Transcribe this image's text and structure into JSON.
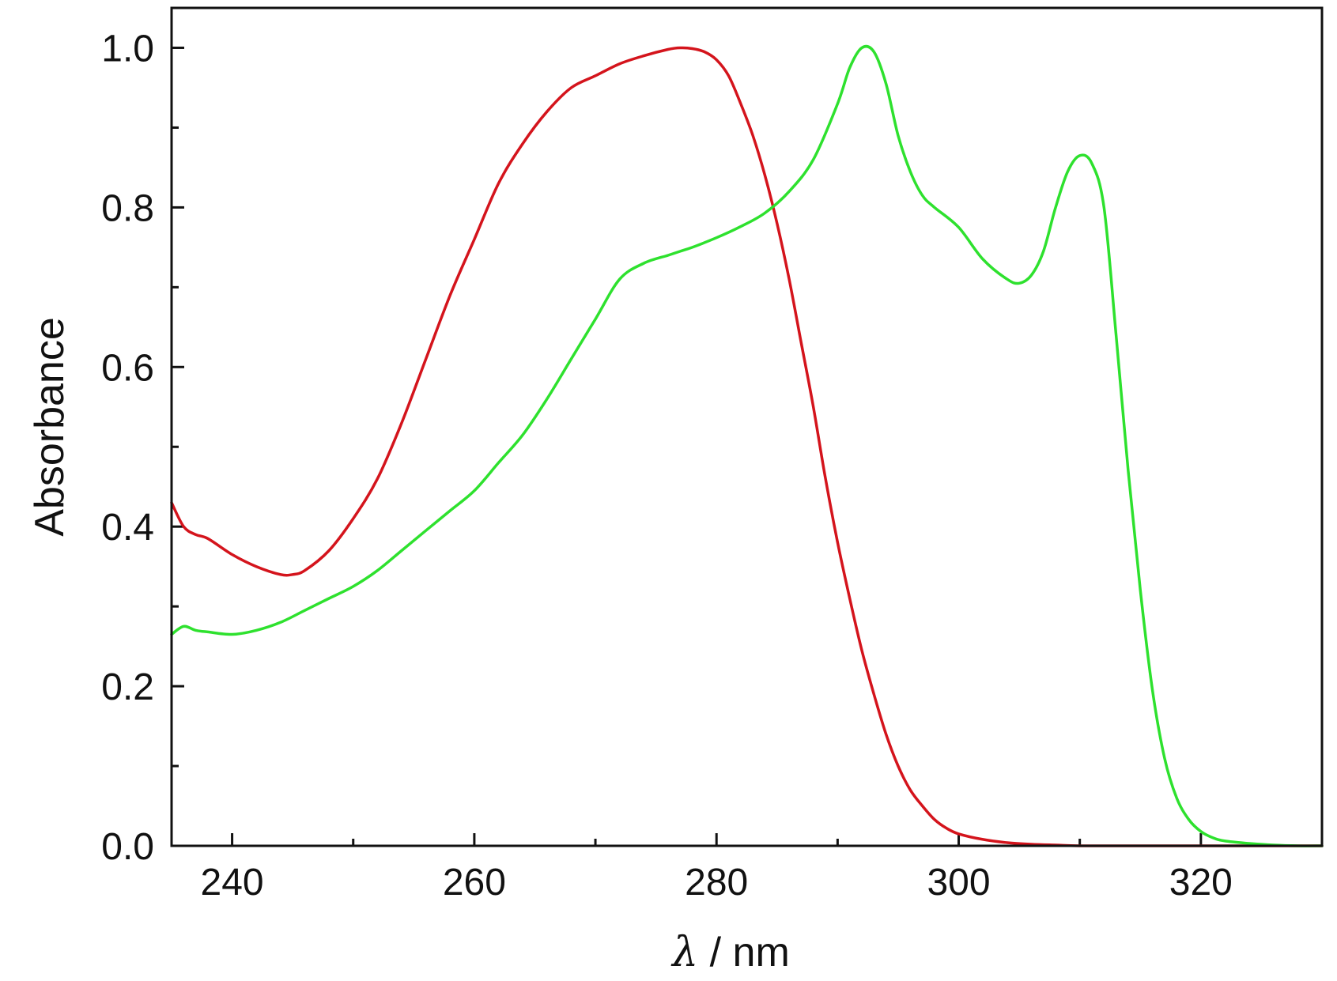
{
  "chart_data": {
    "type": "line",
    "title": "",
    "xlabel_symbol": "λ",
    "xlabel_rest": " / nm",
    "ylabel": "Absorbance",
    "xlim": [
      235,
      330
    ],
    "ylim": [
      0.0,
      1.05
    ],
    "x_ticks": [
      240,
      260,
      280,
      300,
      320
    ],
    "x_tick_labels": [
      "240",
      "260",
      "280",
      "300",
      "320"
    ],
    "x_minor_ticks": [
      250,
      270,
      290,
      310,
      330
    ],
    "y_ticks": [
      0.0,
      0.2,
      0.4,
      0.6,
      0.8,
      1.0
    ],
    "y_tick_labels": [
      "0.0",
      "0.2",
      "0.4",
      "0.6",
      "0.8",
      "1.0"
    ],
    "y_minor_ticks": [
      0.1,
      0.3,
      0.5,
      0.7,
      0.9
    ],
    "grid": false,
    "legend": "none",
    "series": [
      {
        "color": "#d4141c",
        "x": [
          235,
          236,
          237,
          238,
          240,
          242,
          244,
          245,
          246,
          248,
          250,
          252,
          254,
          256,
          258,
          260,
          262,
          264,
          266,
          268,
          270,
          272,
          274,
          276,
          277,
          278,
          279,
          280,
          281,
          282,
          283,
          284,
          285,
          286,
          287,
          288,
          289,
          290,
          291,
          292,
          293,
          294,
          295,
          296,
          297,
          298,
          299,
          300,
          302,
          304,
          306,
          308,
          310,
          315,
          320,
          325,
          330
        ],
        "y": [
          0.43,
          0.4,
          0.39,
          0.385,
          0.365,
          0.35,
          0.34,
          0.34,
          0.345,
          0.37,
          0.41,
          0.46,
          0.53,
          0.61,
          0.69,
          0.76,
          0.83,
          0.88,
          0.92,
          0.95,
          0.965,
          0.98,
          0.99,
          0.998,
          1.0,
          0.999,
          0.995,
          0.985,
          0.965,
          0.93,
          0.89,
          0.84,
          0.78,
          0.71,
          0.63,
          0.55,
          0.46,
          0.38,
          0.31,
          0.245,
          0.19,
          0.14,
          0.1,
          0.07,
          0.05,
          0.033,
          0.022,
          0.015,
          0.008,
          0.004,
          0.002,
          0.001,
          0.0,
          0.0,
          0.0,
          0.0,
          0.0
        ]
      },
      {
        "color": "#2ee12e",
        "x": [
          235,
          236,
          237,
          238,
          240,
          242,
          244,
          246,
          248,
          250,
          252,
          254,
          256,
          258,
          260,
          262,
          264,
          266,
          268,
          270,
          272,
          274,
          276,
          277,
          278,
          280,
          282,
          284,
          286,
          288,
          290,
          291,
          292,
          293,
          294,
          295,
          296,
          297,
          298,
          300,
          302,
          304,
          305,
          306,
          307,
          308,
          309,
          310,
          311,
          312,
          313,
          314,
          315,
          316,
          317,
          318,
          319,
          320,
          321,
          322,
          324,
          326,
          328,
          330
        ],
        "y": [
          0.265,
          0.275,
          0.27,
          0.268,
          0.265,
          0.27,
          0.28,
          0.295,
          0.31,
          0.325,
          0.345,
          0.37,
          0.395,
          0.42,
          0.445,
          0.48,
          0.515,
          0.56,
          0.61,
          0.66,
          0.71,
          0.73,
          0.74,
          0.745,
          0.75,
          0.762,
          0.776,
          0.793,
          0.82,
          0.86,
          0.93,
          0.975,
          1.0,
          0.995,
          0.955,
          0.89,
          0.845,
          0.815,
          0.8,
          0.775,
          0.735,
          0.71,
          0.705,
          0.715,
          0.745,
          0.8,
          0.845,
          0.865,
          0.855,
          0.8,
          0.64,
          0.47,
          0.32,
          0.195,
          0.11,
          0.06,
          0.033,
          0.018,
          0.01,
          0.006,
          0.003,
          0.001,
          0.0,
          0.0
        ]
      }
    ]
  }
}
